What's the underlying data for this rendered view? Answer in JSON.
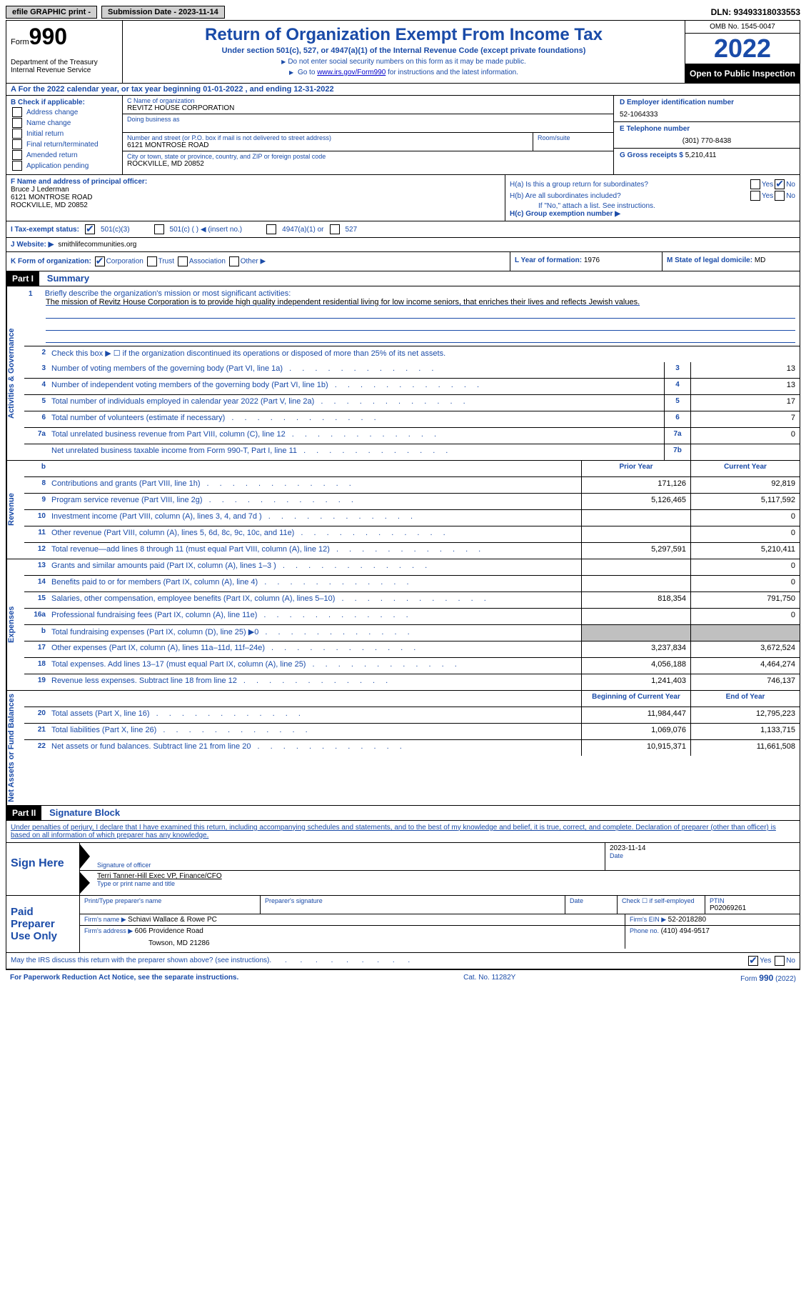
{
  "topbar": {
    "efile": "efile GRAPHIC print -",
    "submission": "Submission Date - 2023-11-14",
    "dln": "DLN: 93493318033553"
  },
  "header": {
    "form_prefix": "Form",
    "form_number": "990",
    "title": "Return of Organization Exempt From Income Tax",
    "subtitle": "Under section 501(c), 527, or 4947(a)(1) of the Internal Revenue Code (except private foundations)",
    "note1": "Do not enter social security numbers on this form as it may be made public.",
    "note2_pre": "Go to ",
    "note2_link": "www.irs.gov/Form990",
    "note2_post": " for instructions and the latest information.",
    "dept": "Department of the Treasury Internal Revenue Service",
    "omb": "OMB No. 1545-0047",
    "year": "2022",
    "inspect": "Open to Public Inspection"
  },
  "rowA": "A For the 2022 calendar year, or tax year beginning 01-01-2022    , and ending 12-31-2022",
  "sectionB": {
    "label": "B Check if applicable:",
    "opts": [
      "Address change",
      "Name change",
      "Initial return",
      "Final return/terminated",
      "Amended return",
      "Application pending"
    ]
  },
  "sectionC": {
    "name_lbl": "C Name of organization",
    "name": "REVITZ HOUSE CORPORATION",
    "dba_lbl": "Doing business as",
    "addr_lbl": "Number and street (or P.O. box if mail is not delivered to street address)",
    "addr": "6121 MONTROSE ROAD",
    "room_lbl": "Room/suite",
    "city_lbl": "City or town, state or province, country, and ZIP or foreign postal code",
    "city": "ROCKVILLE, MD  20852"
  },
  "sectionD": {
    "ein_lbl": "D Employer identification number",
    "ein": "52-1064333",
    "phone_lbl": "E Telephone number",
    "phone": "(301) 770-8438",
    "gross_lbl": "G Gross receipts $",
    "gross": "5,210,411"
  },
  "sectionF": {
    "lbl": "F Name and address of principal officer:",
    "name": "Bruce J Lederman",
    "addr1": "6121 MONTROSE ROAD",
    "addr2": "ROCKVILLE, MD  20852"
  },
  "sectionH": {
    "a": "H(a)  Is this a group return for subordinates?",
    "b": "H(b)  Are all subordinates included?",
    "b_note": "If \"No,\" attach a list. See instructions.",
    "c": "H(c)  Group exemption number ▶",
    "yes": "Yes",
    "no": "No"
  },
  "rowI": {
    "lbl": "I  Tax-exempt status:",
    "o1": "501(c)(3)",
    "o2": "501(c) (  ) ◀ (insert no.)",
    "o3": "4947(a)(1) or",
    "o4": "527"
  },
  "rowJ": {
    "lbl": "J  Website: ▶",
    "val": "smithlifecommunities.org"
  },
  "rowK": {
    "lbl": "K Form of organization:",
    "opts": [
      "Corporation",
      "Trust",
      "Association",
      "Other ▶"
    ],
    "l_lbl": "L Year of formation:",
    "l_val": "1976",
    "m_lbl": "M State of legal domicile:",
    "m_val": "MD"
  },
  "part1": {
    "hdr": "Part I",
    "title": "Summary",
    "mission_q": "Briefly describe the organization's mission or most significant activities:",
    "mission": "The mission of Revitz House Corporation is to provide high quality independent residential living for low income seniors, that enriches their lives and reflects Jewish values.",
    "line2": "Check this box ▶ ☐ if the organization discontinued its operations or disposed of more than 25% of its net assets.",
    "tabs": {
      "act": "Activities & Governance",
      "rev": "Revenue",
      "exp": "Expenses",
      "net": "Net Assets or Fund Balances"
    },
    "lines_single": [
      {
        "n": "3",
        "d": "Number of voting members of the governing body (Part VI, line 1a)",
        "bn": "3",
        "v": "13"
      },
      {
        "n": "4",
        "d": "Number of independent voting members of the governing body (Part VI, line 1b)",
        "bn": "4",
        "v": "13"
      },
      {
        "n": "5",
        "d": "Total number of individuals employed in calendar year 2022 (Part V, line 2a)",
        "bn": "5",
        "v": "17"
      },
      {
        "n": "6",
        "d": "Total number of volunteers (estimate if necessary)",
        "bn": "6",
        "v": "7"
      },
      {
        "n": "7a",
        "d": "Total unrelated business revenue from Part VIII, column (C), line 12",
        "bn": "7a",
        "v": "0"
      },
      {
        "n": "",
        "d": "Net unrelated business taxable income from Form 990-T, Part I, line 11",
        "bn": "7b",
        "v": ""
      }
    ],
    "yr_prior": "Prior Year",
    "yr_curr": "Current Year",
    "rev_lines": [
      {
        "n": "8",
        "d": "Contributions and grants (Part VIII, line 1h)",
        "p": "171,126",
        "c": "92,819"
      },
      {
        "n": "9",
        "d": "Program service revenue (Part VIII, line 2g)",
        "p": "5,126,465",
        "c": "5,117,592"
      },
      {
        "n": "10",
        "d": "Investment income (Part VIII, column (A), lines 3, 4, and 7d )",
        "p": "",
        "c": "0"
      },
      {
        "n": "11",
        "d": "Other revenue (Part VIII, column (A), lines 5, 6d, 8c, 9c, 10c, and 11e)",
        "p": "",
        "c": "0"
      },
      {
        "n": "12",
        "d": "Total revenue—add lines 8 through 11 (must equal Part VIII, column (A), line 12)",
        "p": "5,297,591",
        "c": "5,210,411"
      }
    ],
    "exp_lines": [
      {
        "n": "13",
        "d": "Grants and similar amounts paid (Part IX, column (A), lines 1–3 )",
        "p": "",
        "c": "0"
      },
      {
        "n": "14",
        "d": "Benefits paid to or for members (Part IX, column (A), line 4)",
        "p": "",
        "c": "0"
      },
      {
        "n": "15",
        "d": "Salaries, other compensation, employee benefits (Part IX, column (A), lines 5–10)",
        "p": "818,354",
        "c": "791,750"
      },
      {
        "n": "16a",
        "d": "Professional fundraising fees (Part IX, column (A), line 11e)",
        "p": "",
        "c": "0"
      },
      {
        "n": "b",
        "d": "Total fundraising expenses (Part IX, column (D), line 25) ▶0",
        "p": "SHADE",
        "c": "SHADE"
      },
      {
        "n": "17",
        "d": "Other expenses (Part IX, column (A), lines 11a–11d, 11f–24e)",
        "p": "3,237,834",
        "c": "3,672,524"
      },
      {
        "n": "18",
        "d": "Total expenses. Add lines 13–17 (must equal Part IX, column (A), line 25)",
        "p": "4,056,188",
        "c": "4,464,274"
      },
      {
        "n": "19",
        "d": "Revenue less expenses. Subtract line 18 from line 12",
        "p": "1,241,403",
        "c": "746,137"
      }
    ],
    "net_hdr_p": "Beginning of Current Year",
    "net_hdr_c": "End of Year",
    "net_lines": [
      {
        "n": "20",
        "d": "Total assets (Part X, line 16)",
        "p": "11,984,447",
        "c": "12,795,223"
      },
      {
        "n": "21",
        "d": "Total liabilities (Part X, line 26)",
        "p": "1,069,076",
        "c": "1,133,715"
      },
      {
        "n": "22",
        "d": "Net assets or fund balances. Subtract line 21 from line 20",
        "p": "10,915,371",
        "c": "11,661,508"
      }
    ]
  },
  "part2": {
    "hdr": "Part II",
    "title": "Signature Block",
    "decl": "Under penalties of perjury, I declare that I have examined this return, including accompanying schedules and statements, and to the best of my knowledge and belief, it is true, correct, and complete. Declaration of preparer (other than officer) is based on all information of which preparer has any knowledge."
  },
  "sign": {
    "left": "Sign Here",
    "sig_lbl": "Signature of officer",
    "date_lbl": "Date",
    "date": "2023-11-14",
    "name": "Terri Tanner-Hill Exec VP, Finance/CFO",
    "name_lbl": "Type or print name and title"
  },
  "preparer": {
    "left": "Paid Preparer Use Only",
    "name_lbl": "Print/Type preparer's name",
    "sig_lbl": "Preparer's signature",
    "date_lbl": "Date",
    "self_lbl": "Check ☐ if self-employed",
    "ptin_lbl": "PTIN",
    "ptin": "P02069261",
    "firm_name_lbl": "Firm's name    ▶",
    "firm_name": "Schiavi Wallace & Rowe PC",
    "firm_ein_lbl": "Firm's EIN ▶",
    "firm_ein": "52-2018280",
    "firm_addr_lbl": "Firm's address ▶",
    "firm_addr1": "606 Providence Road",
    "firm_addr2": "Towson, MD  21286",
    "phone_lbl": "Phone no.",
    "phone": "(410) 494-9517"
  },
  "footer": {
    "discuss": "May the IRS discuss this return with the preparer shown above? (see instructions)",
    "yes": "Yes",
    "no": "No",
    "pra": "For Paperwork Reduction Act Notice, see the separate instructions.",
    "cat": "Cat. No. 11282Y",
    "form": "Form 990 (2022)"
  }
}
